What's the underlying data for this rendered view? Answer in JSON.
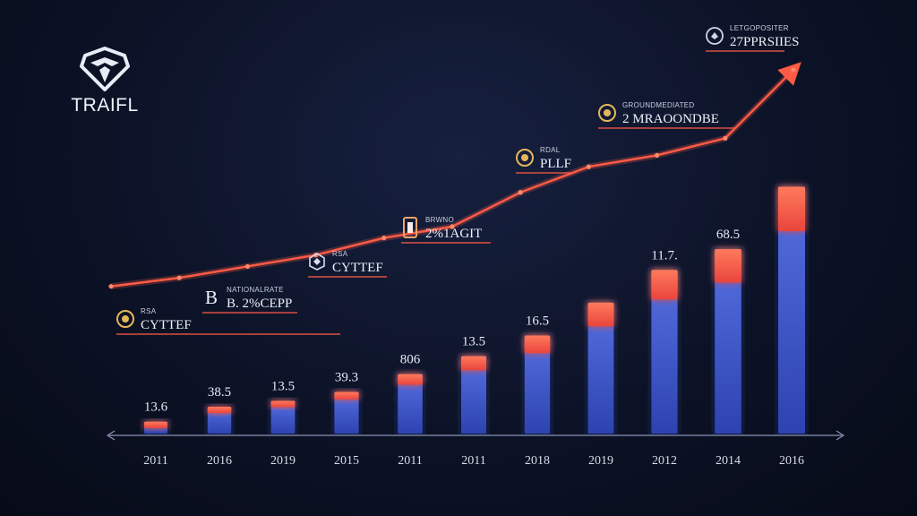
{
  "brand": {
    "name": "TRAIFL"
  },
  "colors": {
    "bar_body": "#3f5fd6",
    "bar_cap": "#ff6a4f",
    "trend_line": "#ff5a45",
    "background": "#0c1226"
  },
  "chart_data": {
    "type": "bar",
    "categories": [
      "2011",
      "2016",
      "2019",
      "2015",
      "2011",
      "2011",
      "2018",
      "2019",
      "2012",
      "2014",
      "2016"
    ],
    "values": [
      4,
      9,
      11,
      14,
      20,
      26,
      33,
      44,
      55,
      62,
      83
    ],
    "data_labels": [
      "13.6",
      "38.5",
      "13.5",
      "39.3",
      "806",
      "13.5",
      "16.5",
      "",
      "11.7.",
      "68.5",
      ""
    ],
    "overlay_line": {
      "type": "line",
      "values": [
        24,
        27,
        31,
        35,
        41,
        45,
        57,
        66,
        70,
        76,
        100
      ]
    },
    "annotations": [
      {
        "label": "RSA",
        "value": "CYTTEF",
        "icon": "coin-icon",
        "point": 0
      },
      {
        "label": "NATIONALRATE",
        "value": "B. 2%CEPP",
        "icon": "b-icon",
        "point": 1
      },
      {
        "label": "RSA",
        "value": "CYTTEF",
        "icon": "hexagon-icon",
        "point": 3
      },
      {
        "label": "BRWNO",
        "value": "2%1AGIT",
        "icon": "phone-icon",
        "point": 5
      },
      {
        "label": "RDAL",
        "value": "PLLF",
        "icon": "coin-icon",
        "point": 6
      },
      {
        "label": "GROUNDMEDIATED",
        "value": "2 MRAOONDBE",
        "icon": "coin-icon",
        "point": 8
      },
      {
        "label": "LETGOPOSITER",
        "value": "27PPRSIIES",
        "icon": "badge-icon",
        "point": 10
      }
    ],
    "ylim": [
      0,
      100
    ],
    "grid": false,
    "legend": "none"
  }
}
